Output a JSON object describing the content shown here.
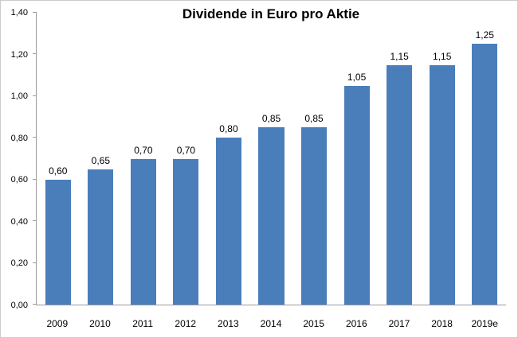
{
  "chart_data": {
    "type": "bar",
    "title": "Dividende in Euro pro Aktie",
    "categories": [
      "2009",
      "2010",
      "2011",
      "2012",
      "2013",
      "2014",
      "2015",
      "2016",
      "2017",
      "2018",
      "2019e"
    ],
    "values": [
      0.6,
      0.65,
      0.7,
      0.7,
      0.8,
      0.85,
      0.85,
      1.05,
      1.15,
      1.15,
      1.25
    ],
    "value_labels": [
      "0,60",
      "0,65",
      "0,70",
      "0,70",
      "0,80",
      "0,85",
      "0,85",
      "1,05",
      "1,15",
      "1,15",
      "1,25"
    ],
    "xlabel": "",
    "ylabel": "",
    "ylim": [
      0,
      1.4
    ],
    "yticks": [
      {
        "value": 0.0,
        "label": "0,00"
      },
      {
        "value": 0.2,
        "label": "0,20"
      },
      {
        "value": 0.4,
        "label": "0,40"
      },
      {
        "value": 0.6,
        "label": "0,60"
      },
      {
        "value": 0.8,
        "label": "0,80"
      },
      {
        "value": 1.0,
        "label": "1,00"
      },
      {
        "value": 1.2,
        "label": "1,20"
      },
      {
        "value": 1.4,
        "label": "1,40"
      }
    ],
    "bar_color": "#4a7ebb",
    "axis_color": "#9a9a9a",
    "grid": false,
    "legend_position": "none"
  }
}
